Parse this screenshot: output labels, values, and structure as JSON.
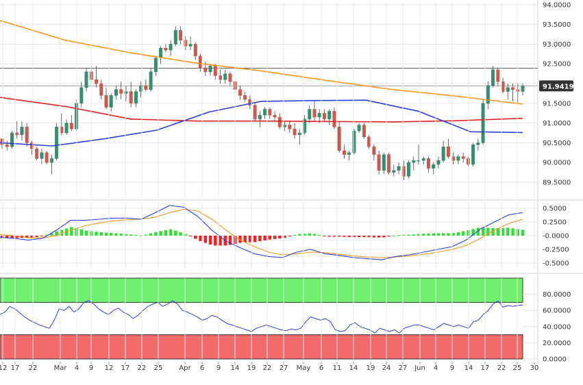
{
  "chart_data": [
    {
      "type": "candlestick",
      "panel": "price",
      "y_ticks": [
        "94.0000",
        "93.5000",
        "93.0000",
        "92.5000",
        "92.0000",
        "91.5000",
        "91.0000",
        "90.5000",
        "90.0000",
        "89.5000"
      ],
      "y_tick_values": [
        94.0,
        93.5,
        93.0,
        92.5,
        92.0,
        91.5,
        91.0,
        90.5,
        90.0,
        89.5
      ],
      "ylim": [
        89.1,
        94.05
      ],
      "last_price_label": "91.9419",
      "last_price": 91.9419,
      "horizontal_line": 92.39,
      "colors": {
        "up": "#3a8c6e",
        "down": "#c85a4f",
        "sma_fast": "#2b3fd6",
        "sma_mid": "#e02020",
        "sma_slow": "#f7941d",
        "price_tag": "#333333"
      },
      "candles": [
        [
          90.6,
          90.6,
          90.35,
          90.45
        ],
        [
          90.45,
          90.55,
          90.3,
          90.4
        ],
        [
          90.4,
          90.8,
          90.35,
          90.75
        ],
        [
          90.75,
          91.05,
          90.6,
          90.7
        ],
        [
          90.7,
          91.05,
          90.55,
          90.9
        ],
        [
          90.9,
          91.0,
          90.4,
          90.5
        ],
        [
          90.5,
          90.55,
          90.2,
          90.35
        ],
        [
          90.35,
          90.4,
          90.05,
          90.1
        ],
        [
          90.1,
          90.35,
          89.95,
          90.25
        ],
        [
          90.25,
          90.3,
          89.95,
          90.0
        ],
        [
          90.0,
          90.2,
          89.7,
          90.1
        ],
        [
          90.1,
          91.0,
          90.05,
          90.9
        ],
        [
          90.9,
          91.25,
          90.7,
          90.75
        ],
        [
          90.75,
          91.1,
          90.7,
          91.0
        ],
        [
          91.0,
          91.2,
          90.8,
          90.85
        ],
        [
          90.85,
          91.6,
          90.8,
          91.5
        ],
        [
          91.5,
          92.05,
          91.4,
          91.9
        ],
        [
          91.9,
          92.4,
          91.8,
          92.3
        ],
        [
          92.3,
          92.45,
          92.0,
          92.1
        ],
        [
          92.1,
          92.45,
          91.9,
          92.0
        ],
        [
          92.0,
          92.1,
          91.6,
          91.7
        ],
        [
          91.7,
          91.9,
          91.35,
          91.4
        ],
        [
          91.4,
          91.75,
          91.3,
          91.7
        ],
        [
          91.7,
          91.95,
          91.6,
          91.85
        ],
        [
          91.85,
          92.05,
          91.6,
          91.75
        ],
        [
          91.75,
          91.95,
          91.55,
          91.8
        ],
        [
          91.8,
          92.05,
          91.4,
          91.5
        ],
        [
          91.5,
          91.85,
          91.4,
          91.8
        ],
        [
          91.8,
          92.05,
          91.65,
          91.95
        ],
        [
          91.95,
          92.1,
          91.8,
          91.85
        ],
        [
          91.85,
          92.4,
          91.8,
          92.3
        ],
        [
          92.3,
          92.7,
          92.2,
          92.65
        ],
        [
          92.65,
          92.95,
          92.5,
          92.9
        ],
        [
          92.9,
          93.0,
          92.8,
          92.85
        ],
        [
          92.85,
          93.1,
          92.7,
          93.0
        ],
        [
          93.0,
          93.45,
          92.95,
          93.35
        ],
        [
          93.35,
          93.45,
          93.0,
          93.1
        ],
        [
          93.1,
          93.2,
          92.85,
          92.95
        ],
        [
          92.95,
          93.2,
          92.85,
          93.0
        ],
        [
          93.0,
          93.05,
          92.6,
          92.7
        ],
        [
          92.7,
          92.75,
          92.3,
          92.4
        ],
        [
          92.4,
          92.55,
          92.2,
          92.3
        ],
        [
          92.3,
          92.5,
          92.2,
          92.45
        ],
        [
          92.45,
          92.5,
          92.1,
          92.2
        ],
        [
          92.2,
          92.35,
          92.0,
          92.1
        ],
        [
          92.1,
          92.35,
          92.0,
          92.25
        ],
        [
          92.25,
          92.3,
          91.95,
          92.05
        ],
        [
          92.05,
          92.1,
          91.75,
          91.85
        ],
        [
          91.85,
          91.95,
          91.6,
          91.7
        ],
        [
          91.7,
          91.8,
          91.55,
          91.6
        ],
        [
          91.6,
          91.7,
          91.35,
          91.45
        ],
        [
          91.45,
          91.5,
          91.05,
          91.1
        ],
        [
          91.1,
          91.3,
          90.9,
          91.2
        ],
        [
          91.2,
          91.4,
          91.1,
          91.35
        ],
        [
          91.35,
          91.4,
          91.1,
          91.2
        ],
        [
          91.2,
          91.3,
          91.05,
          91.15
        ],
        [
          91.15,
          91.25,
          90.85,
          90.9
        ],
        [
          90.9,
          91.05,
          90.8,
          90.95
        ],
        [
          90.95,
          91.05,
          90.75,
          90.85
        ],
        [
          90.85,
          91.0,
          90.6,
          90.7
        ],
        [
          90.7,
          90.85,
          90.45,
          90.75
        ],
        [
          90.75,
          91.2,
          90.7,
          91.1
        ],
        [
          91.1,
          91.45,
          91.0,
          91.35
        ],
        [
          91.35,
          91.55,
          91.05,
          91.15
        ],
        [
          91.15,
          91.35,
          91.0,
          91.25
        ],
        [
          91.25,
          91.35,
          91.05,
          91.1
        ],
        [
          91.1,
          91.35,
          90.95,
          91.3
        ],
        [
          91.3,
          91.4,
          90.85,
          90.9
        ],
        [
          90.9,
          91.05,
          90.25,
          90.3
        ],
        [
          90.3,
          90.45,
          90.1,
          90.2
        ],
        [
          90.2,
          90.3,
          90.05,
          90.25
        ],
        [
          90.25,
          90.85,
          90.2,
          90.8
        ],
        [
          90.8,
          91.0,
          90.75,
          90.95
        ],
        [
          90.95,
          91.0,
          90.6,
          90.65
        ],
        [
          90.65,
          90.7,
          90.35,
          90.4
        ],
        [
          90.4,
          90.45,
          90.05,
          90.2
        ],
        [
          90.2,
          90.3,
          89.7,
          89.8
        ],
        [
          89.8,
          90.25,
          89.7,
          90.2
        ],
        [
          90.2,
          90.25,
          89.7,
          89.75
        ],
        [
          89.75,
          89.95,
          89.65,
          89.8
        ],
        [
          89.8,
          90.0,
          89.7,
          89.9
        ],
        [
          89.9,
          90.05,
          89.55,
          89.65
        ],
        [
          89.65,
          90.05,
          89.6,
          90.0
        ],
        [
          90.0,
          90.15,
          89.8,
          90.05
        ],
        [
          90.05,
          90.45,
          89.95,
          90.05
        ],
        [
          90.05,
          90.15,
          89.95,
          90.1
        ],
        [
          90.1,
          90.15,
          89.75,
          89.85
        ],
        [
          89.85,
          90.0,
          89.7,
          89.95
        ],
        [
          89.95,
          90.15,
          89.85,
          90.05
        ],
        [
          90.05,
          90.55,
          90.0,
          90.4
        ],
        [
          90.4,
          90.6,
          90.1,
          90.15
        ],
        [
          90.15,
          90.25,
          89.95,
          90.05
        ],
        [
          90.05,
          90.2,
          89.95,
          90.15
        ],
        [
          90.15,
          90.25,
          90.0,
          90.1
        ],
        [
          90.1,
          90.15,
          89.9,
          89.95
        ],
        [
          89.95,
          90.5,
          89.9,
          90.45
        ],
        [
          90.45,
          90.6,
          90.3,
          90.5
        ],
        [
          90.5,
          91.6,
          90.45,
          91.5
        ],
        [
          91.5,
          92.05,
          91.35,
          91.95
        ],
        [
          91.95,
          92.45,
          91.9,
          92.35
        ],
        [
          92.35,
          92.4,
          91.95,
          92.05
        ],
        [
          92.05,
          92.15,
          91.75,
          91.8
        ],
        [
          91.8,
          92.0,
          91.6,
          91.9
        ],
        [
          91.9,
          92.0,
          91.55,
          91.85
        ],
        [
          91.85,
          92.0,
          91.5,
          91.8
        ],
        [
          91.8,
          92.0,
          91.7,
          91.9419
        ]
      ],
      "sma_slow": [
        93.6,
        93.1,
        92.78,
        92.52,
        92.32,
        92.08,
        91.85,
        91.68,
        91.48
      ],
      "sma_mid": [
        91.65,
        91.42,
        91.1,
        91.05,
        91.05,
        91.04,
        91.03,
        91.06,
        91.12
      ],
      "sma_fast": [
        90.5,
        90.42,
        90.6,
        90.82,
        91.28,
        91.55,
        91.57,
        91.58,
        91.3,
        90.78,
        90.76
      ]
    },
    {
      "type": "macd",
      "panel": "macd",
      "y_ticks": [
        "0.5000",
        "0.2500",
        "-0.0000",
        "-0.2500",
        "-0.5000"
      ],
      "y_tick_values": [
        0.5,
        0.25,
        0.0,
        -0.25,
        -0.5
      ],
      "ylim": [
        -0.6,
        0.6
      ],
      "colors": {
        "macd": "#2b3fd6",
        "signal": "#f7941d",
        "hist_pos": "#33dd33",
        "hist_neg": "#ee2222"
      },
      "macd_line": [
        -0.03,
        -0.05,
        -0.08,
        -0.05,
        0.1,
        0.28,
        0.28,
        0.3,
        0.32,
        0.32,
        0.3,
        0.42,
        0.55,
        0.52,
        0.35,
        0.1,
        -0.1,
        -0.22,
        -0.33,
        -0.38,
        -0.4,
        -0.3,
        -0.25,
        -0.33,
        -0.36,
        -0.4,
        -0.42,
        -0.44,
        -0.38,
        -0.35,
        -0.3,
        -0.25,
        -0.2,
        -0.08,
        0.12,
        0.25,
        0.38,
        0.42
      ],
      "signal_line": [
        0.02,
        0.0,
        -0.04,
        -0.04,
        0.0,
        0.1,
        0.18,
        0.23,
        0.27,
        0.29,
        0.3,
        0.34,
        0.42,
        0.48,
        0.45,
        0.3,
        0.1,
        -0.08,
        -0.2,
        -0.3,
        -0.35,
        -0.33,
        -0.3,
        -0.31,
        -0.34,
        -0.37,
        -0.39,
        -0.4,
        -0.39,
        -0.37,
        -0.34,
        -0.3,
        -0.25,
        -0.18,
        -0.05,
        0.1,
        0.22,
        0.3
      ]
    },
    {
      "type": "line",
      "panel": "rsi",
      "y_ticks": [
        "80.0000",
        "60.0000",
        "40.0000",
        "20.0000",
        "0.0000"
      ],
      "y_tick_values": [
        80,
        60,
        40,
        20,
        0
      ],
      "ylim": [
        0,
        100
      ],
      "overbought": [
        70,
        100
      ],
      "oversold": [
        0,
        30
      ],
      "colors": {
        "line": "#2b3fd6",
        "overbought": "#6ff06f",
        "oversold": "#f26a6a"
      },
      "values": [
        55,
        58,
        65,
        62,
        57,
        52,
        48,
        45,
        42,
        40,
        38,
        48,
        62,
        60,
        65,
        58,
        62,
        70,
        72,
        68,
        62,
        58,
        55,
        60,
        63,
        58,
        55,
        50,
        54,
        60,
        65,
        68,
        70,
        65,
        68,
        72,
        68,
        60,
        58,
        55,
        52,
        48,
        50,
        54,
        52,
        48,
        44,
        42,
        40,
        38,
        36,
        34,
        38,
        40,
        42,
        40,
        38,
        36,
        35,
        37,
        36,
        38,
        46,
        52,
        50,
        48,
        50,
        46,
        36,
        34,
        35,
        42,
        45,
        40,
        38,
        36,
        32,
        38,
        36,
        34,
        36,
        32,
        38,
        40,
        42,
        42,
        40,
        38,
        36,
        40,
        44,
        42,
        40,
        42,
        40,
        38,
        46,
        48,
        55,
        60,
        68,
        72,
        64,
        66,
        65,
        66,
        67
      ]
    },
    {
      "type": "x_axis",
      "tick_labels": [
        "12",
        "17",
        "22",
        "Mar",
        "4",
        "9",
        "12",
        "17",
        "22",
        "25",
        "Apr",
        "6",
        "9",
        "14",
        "19",
        "22",
        "27",
        "May",
        "6",
        "11",
        "14",
        "19",
        "24",
        "27",
        "Jun",
        "4",
        "9",
        "14",
        "17",
        "22",
        "25",
        "30"
      ]
    }
  ]
}
